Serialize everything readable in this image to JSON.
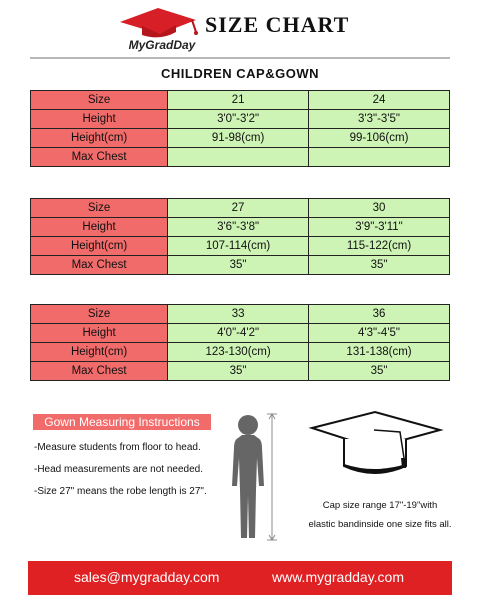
{
  "header": {
    "brand": "MyGradDay",
    "title": "SIZE CHART",
    "subtitle": "CHILDREN CAP&GOWN"
  },
  "tables": [
    {
      "rows": [
        {
          "label": "Size",
          "values": [
            "21",
            "24"
          ]
        },
        {
          "label": "Height",
          "values": [
            "3'0\"-3'2\"",
            "3'3\"-3'5\""
          ]
        },
        {
          "label": "Height(cm)",
          "values": [
            "91-98(cm)",
            "99-106(cm)"
          ]
        },
        {
          "label": "Max Chest",
          "values": [
            "",
            ""
          ]
        }
      ]
    },
    {
      "rows": [
        {
          "label": "Size",
          "values": [
            "27",
            "30"
          ]
        },
        {
          "label": "Height",
          "values": [
            "3'6\"-3'8\"",
            "3'9\"-3'11\""
          ]
        },
        {
          "label": "Height(cm)",
          "values": [
            "107-114(cm)",
            "115-122(cm)"
          ]
        },
        {
          "label": "Max Chest",
          "values": [
            "35\"",
            "35\""
          ]
        }
      ]
    },
    {
      "rows": [
        {
          "label": "Size",
          "values": [
            "33",
            "36"
          ]
        },
        {
          "label": "Height",
          "values": [
            "4'0\"-4'2\"",
            "4'3\"-4'5\""
          ]
        },
        {
          "label": "Height(cm)",
          "values": [
            "123-130(cm)",
            "131-138(cm)"
          ]
        },
        {
          "label": "Max Chest",
          "values": [
            "35\"",
            "35\""
          ]
        }
      ]
    }
  ],
  "instructions": {
    "heading": "Gown Measuring Instructions",
    "lines": [
      "-Measure students from floor to head.",
      "-Head measurements are not needed.",
      "-Size 27\" means the robe length is 27\"."
    ]
  },
  "cap_note": {
    "line1": "Cap size range 17\"-19\"with",
    "line2": "elastic bandinside one size fits all."
  },
  "footer": {
    "email": "sales@mygradday.com",
    "website": "www.mygradday.com"
  },
  "colors": {
    "label_cell": "#f26b6b",
    "value_cell": "#cdf3b5",
    "footer": "#e02123"
  },
  "icons": {
    "logo": "graduation-cap-icon",
    "figure": "child-silhouette-icon",
    "cap": "mortarboard-icon"
  }
}
